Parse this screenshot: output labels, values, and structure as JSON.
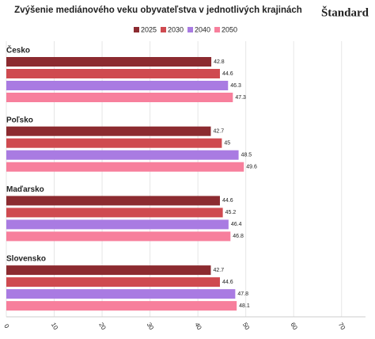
{
  "chart_data": {
    "type": "bar",
    "orientation": "horizontal",
    "title": "Zvýšenie mediánového veku obyvateľstva v jednotlivých krajinách",
    "brand": "Štandard",
    "categories": [
      "Česko",
      "Poľsko",
      "Maďarsko",
      "Slovensko"
    ],
    "series": [
      {
        "name": "2025",
        "color": "#8c2b30",
        "values": [
          42.8,
          42.7,
          44.6,
          42.7
        ]
      },
      {
        "name": "2030",
        "color": "#cf4a50",
        "values": [
          44.6,
          45,
          45.2,
          44.6
        ]
      },
      {
        "name": "2040",
        "color": "#a97be2",
        "values": [
          46.3,
          48.5,
          46.4,
          47.8
        ]
      },
      {
        "name": "2050",
        "color": "#f77f9c",
        "values": [
          47.3,
          49.6,
          46.8,
          48.1
        ]
      }
    ],
    "xlim": [
      0,
      75
    ],
    "xticks": [
      0,
      10,
      20,
      30,
      40,
      50,
      60,
      70
    ],
    "grid": true
  }
}
